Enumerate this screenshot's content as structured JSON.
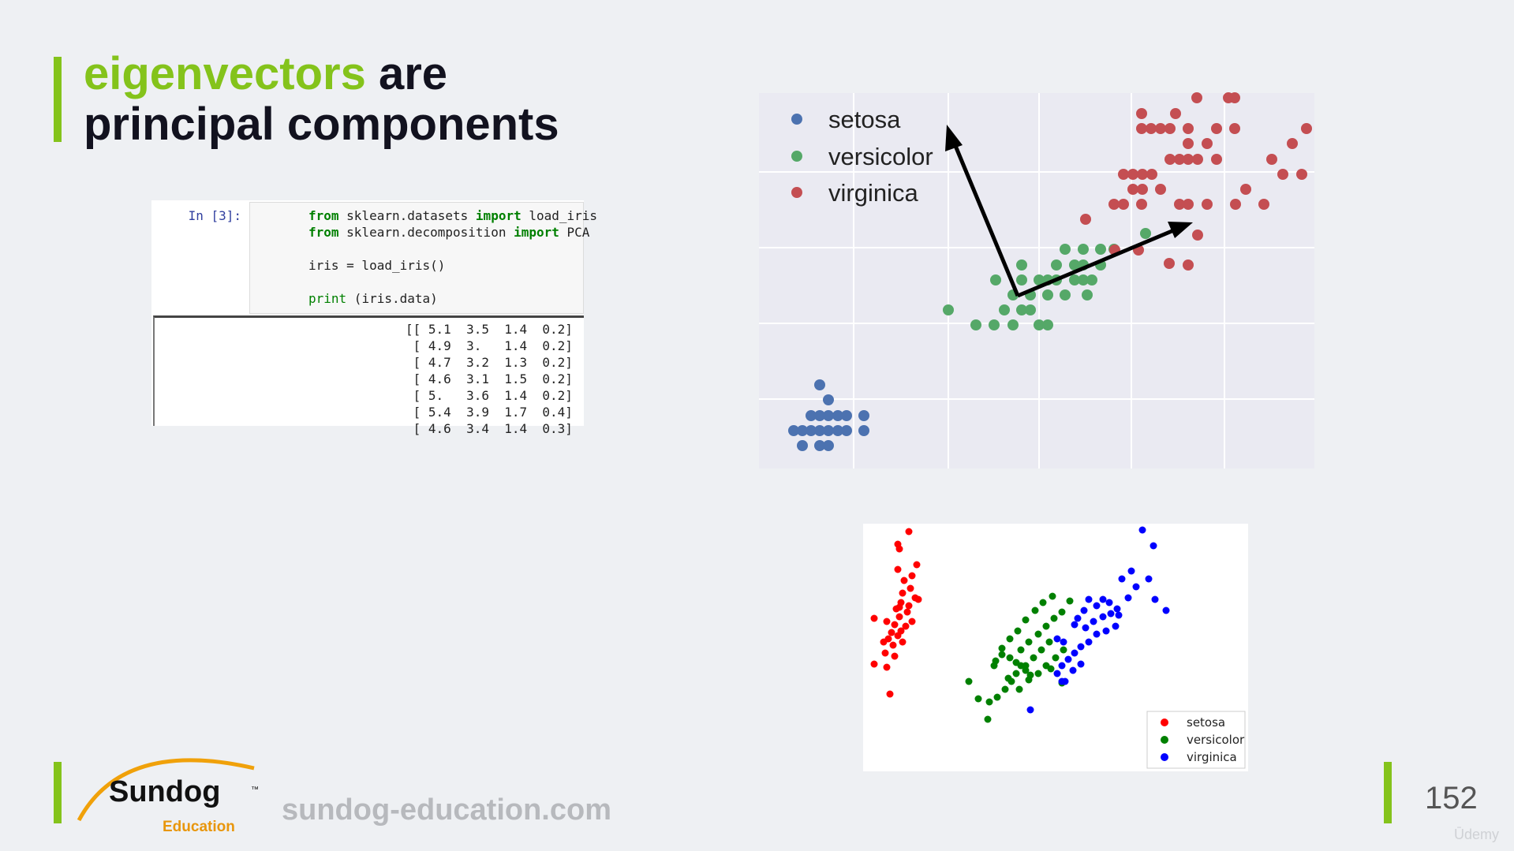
{
  "slide": {
    "title_highlight": "eigenvectors",
    "title_line1_rest": " are",
    "title_line2": "principal components",
    "footer_url": "sundog-education.com",
    "page_number": "152",
    "watermark": "Ūdemy"
  },
  "logo": {
    "name": "Sundog",
    "trademark": "™",
    "subtitle": "Education"
  },
  "notebook": {
    "prompt": "In [3]:",
    "code_lines": [
      {
        "kw1": "from",
        "mid": " sklearn.datasets ",
        "kw2": "import",
        "rest": " load_iris"
      },
      {
        "kw1": "from",
        "mid": " sklearn.decomposition ",
        "kw2": "import",
        "rest": " PCA"
      },
      {
        "plain": "iris = load_iris()"
      },
      {
        "fn": "print",
        "rest": " (iris.data)"
      }
    ],
    "output_lines": [
      "[[ 5.1  3.5  1.4  0.2]",
      " [ 4.9  3.   1.4  0.2]",
      " [ 4.7  3.2  1.3  0.2]",
      " [ 4.6  3.1  1.5  0.2]",
      " [ 5.   3.6  1.4  0.2]",
      " [ 5.4  3.9  1.7  0.4]",
      " [ 4.6  3.4  1.4  0.3]"
    ]
  },
  "colors": {
    "accent": "#84c31b",
    "title_dark": "#12121f",
    "pca_setosa": "#4c72b0",
    "pca_versicolor": "#55a868",
    "pca_virginica": "#c44e52",
    "iris_setosa": "#ff0000",
    "iris_versicolor": "#008000",
    "iris_virginica": "#0000ff"
  },
  "pca_chart": {
    "legend": [
      "setosa",
      "versicolor",
      "virginica"
    ],
    "legend_icon": "circle-marker"
  },
  "iris_chart": {
    "legend": [
      "setosa",
      "versicolor",
      "virginica"
    ]
  }
}
